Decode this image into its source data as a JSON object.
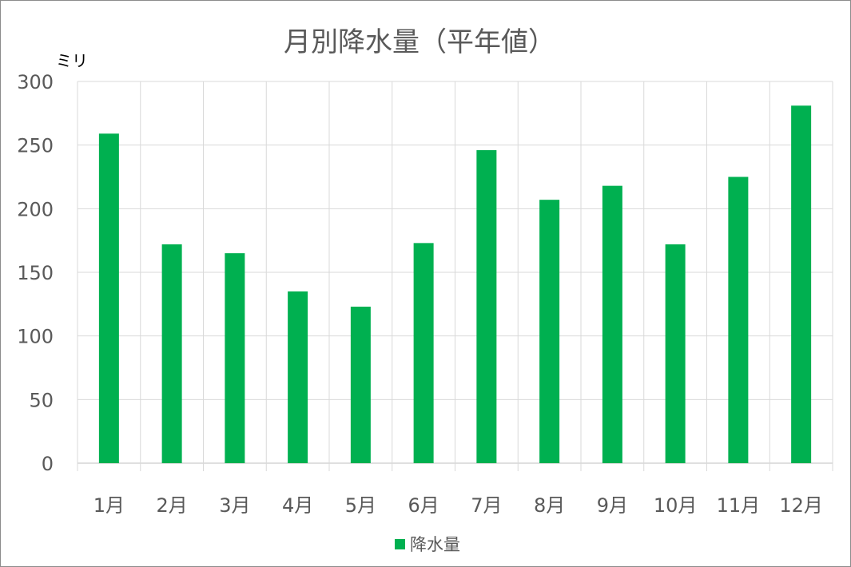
{
  "chart_data": {
    "type": "bar",
    "title": "月別降水量（平年値）",
    "ylabel": "ミリ",
    "xlabel": "",
    "categories": [
      "1月",
      "2月",
      "3月",
      "4月",
      "5月",
      "6月",
      "7月",
      "8月",
      "9月",
      "10月",
      "11月",
      "12月"
    ],
    "series": [
      {
        "name": "降水量",
        "color": "#00b050",
        "values": [
          259,
          172,
          165,
          135,
          123,
          173,
          246,
          207,
          218,
          172,
          225,
          281
        ]
      }
    ],
    "ylim": [
      0,
      300
    ],
    "yticks": [
      "0",
      "50",
      "100",
      "150",
      "200",
      "250",
      "300"
    ],
    "grid": true,
    "legend_position": "bottom"
  }
}
